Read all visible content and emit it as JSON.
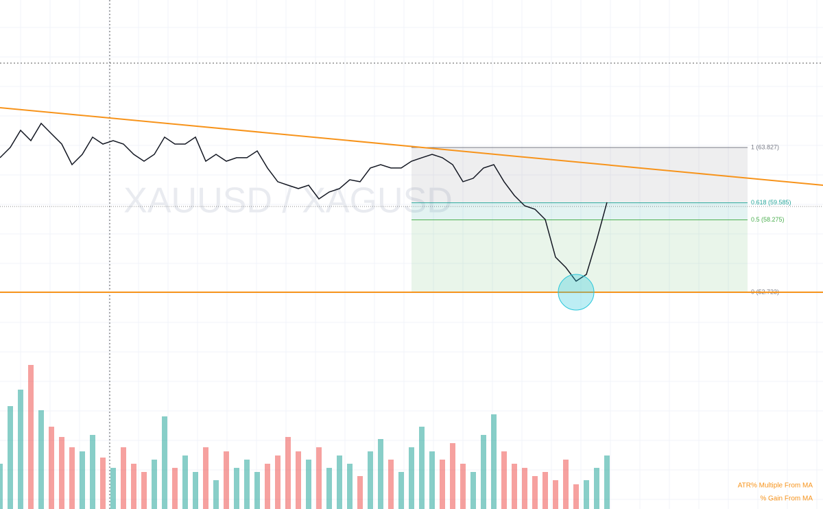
{
  "chart_data": {
    "type": "line",
    "watermark": "XAUUSD / XAGUSD",
    "ylim": [
      36.09,
      75.14
    ],
    "close": [
      63.04,
      63.83,
      65.14,
      64.35,
      65.67,
      64.88,
      64.09,
      62.51,
      63.3,
      64.62,
      64.09,
      64.35,
      64.09,
      63.3,
      62.77,
      63.3,
      64.62,
      64.09,
      64.09,
      64.62,
      62.77,
      63.3,
      62.77,
      63.04,
      63.04,
      63.56,
      62.25,
      61.2,
      60.93,
      60.67,
      60.93,
      59.88,
      60.41,
      60.67,
      61.35,
      61.2,
      62.25,
      62.51,
      62.25,
      62.25,
      62.77,
      63.04,
      63.3,
      63.04,
      62.51,
      61.2,
      61.46,
      62.25,
      62.51,
      61.2,
      60.14,
      59.35,
      59.09,
      58.3,
      55.41,
      54.62,
      53.57,
      54.09,
      56.72,
      59.62
    ],
    "close_color": "#131722",
    "volume": [
      22,
      50,
      58,
      70,
      48,
      40,
      35,
      30,
      28,
      36,
      25,
      20,
      30,
      22,
      18,
      24,
      45,
      20,
      26,
      18,
      30,
      14,
      28,
      20,
      24,
      18,
      22,
      26,
      35,
      28,
      24,
      30,
      20,
      26,
      22,
      16,
      28,
      34,
      24,
      18,
      30,
      40,
      28,
      24,
      32,
      22,
      18,
      36,
      46,
      28,
      22,
      20,
      16,
      18,
      14,
      24,
      12,
      14,
      20,
      26
    ],
    "volume_ylim": [
      0,
      100
    ],
    "up_color": "#26a69a",
    "down_color": "#ef5350",
    "trendline": {
      "start": 66.88,
      "end": 60.93,
      "color": "#f7931a"
    },
    "fib_levels": [
      {
        "value": 63.827,
        "label": "1 (63.827)"
      },
      {
        "value": 59.585,
        "label": "0.618 (59.585)"
      },
      {
        "value": 58.275,
        "label": "0.5 (58.275)"
      },
      {
        "value": 52.723,
        "label": "0 (52.723)"
      }
    ],
    "indicators": [
      "ATR% Multiple From MA",
      "% Gain From MA"
    ]
  }
}
